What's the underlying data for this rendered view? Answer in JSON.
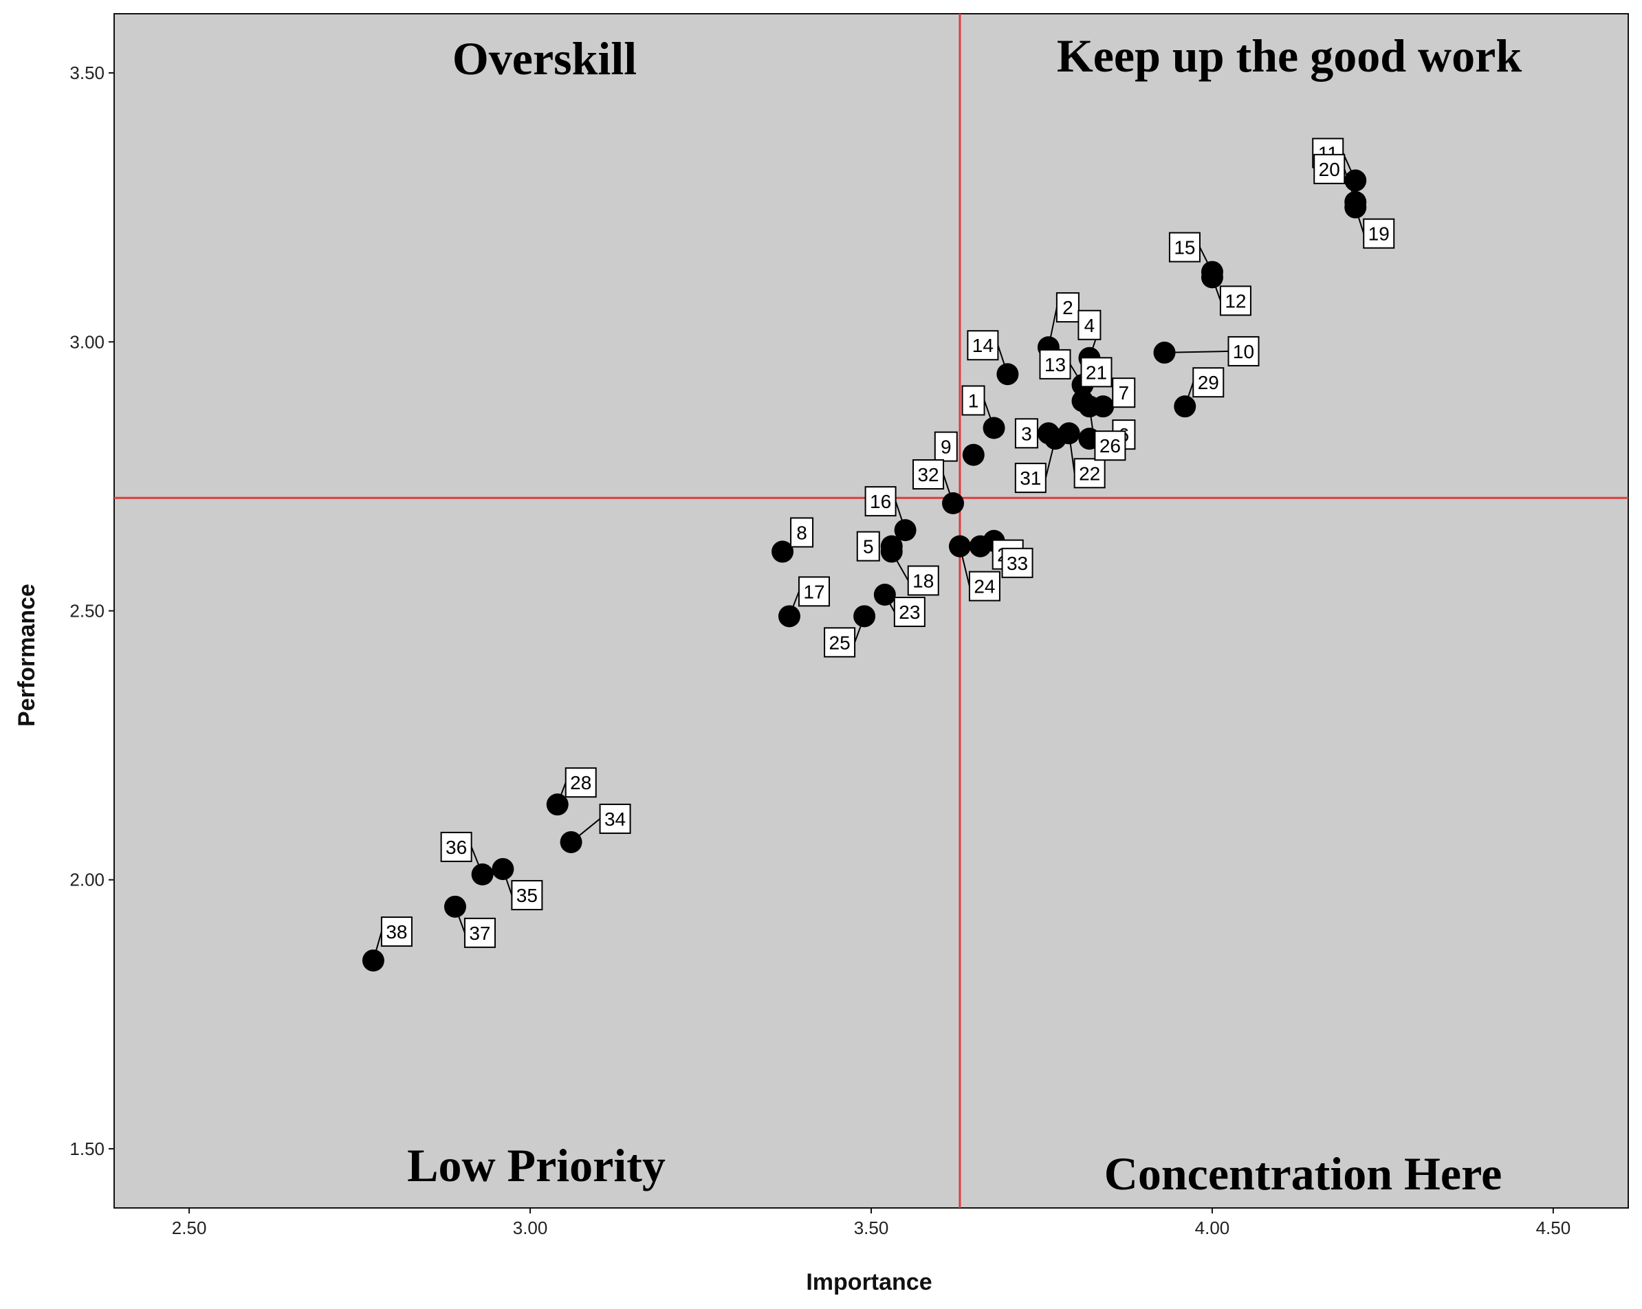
{
  "chart_data": {
    "type": "scatter",
    "title": "",
    "xlabel": "Importance",
    "ylabel": "Performance",
    "xlim": [
      2.39,
      4.61
    ],
    "ylim": [
      1.39,
      3.61
    ],
    "xticks": [
      "2.50",
      "3.00",
      "3.50",
      "4.00",
      "4.50"
    ],
    "xtick_values": [
      2.5,
      3.0,
      3.5,
      4.0,
      4.5
    ],
    "yticks": [
      "1.50",
      "2.00",
      "2.50",
      "3.00",
      "3.50"
    ],
    "ytick_values": [
      1.5,
      2.0,
      2.5,
      3.0,
      3.5
    ],
    "grid": false,
    "reference_lines": {
      "x": 3.63,
      "y": 2.71,
      "color": "#e03c3c"
    },
    "colors": {
      "plot_bg": "#cccccc",
      "marker": "#000000",
      "label_box": "#ffffff"
    },
    "quadrants": {
      "top_left": "Overskill",
      "top_right": "Keep up the good work",
      "bottom_left": "Low Priority",
      "bottom_right": "Concentration Here"
    },
    "points": [
      {
        "id": "1",
        "x": 3.68,
        "y": 2.84
      },
      {
        "id": "2",
        "x": 3.76,
        "y": 2.99
      },
      {
        "id": "3",
        "x": 3.76,
        "y": 2.83
      },
      {
        "id": "4",
        "x": 3.82,
        "y": 2.97
      },
      {
        "id": "5",
        "x": 3.53,
        "y": 2.62
      },
      {
        "id": "6",
        "x": 3.82,
        "y": 2.82
      },
      {
        "id": "7",
        "x": 3.84,
        "y": 2.88
      },
      {
        "id": "8",
        "x": 3.37,
        "y": 2.61
      },
      {
        "id": "9",
        "x": 3.65,
        "y": 2.79
      },
      {
        "id": "10",
        "x": 3.93,
        "y": 2.98
      },
      {
        "id": "11",
        "x": 4.21,
        "y": 3.3
      },
      {
        "id": "12",
        "x": 4.0,
        "y": 3.12
      },
      {
        "id": "13",
        "x": 3.81,
        "y": 2.92
      },
      {
        "id": "14",
        "x": 3.7,
        "y": 2.94
      },
      {
        "id": "15",
        "x": 4.0,
        "y": 3.13
      },
      {
        "id": "16",
        "x": 3.55,
        "y": 2.65
      },
      {
        "id": "17",
        "x": 3.38,
        "y": 2.49
      },
      {
        "id": "18",
        "x": 3.53,
        "y": 2.61
      },
      {
        "id": "19",
        "x": 4.21,
        "y": 3.25
      },
      {
        "id": "20",
        "x": 4.21,
        "y": 3.26
      },
      {
        "id": "21",
        "x": 3.81,
        "y": 2.89
      },
      {
        "id": "22",
        "x": 3.79,
        "y": 2.83
      },
      {
        "id": "23",
        "x": 3.52,
        "y": 2.53
      },
      {
        "id": "24",
        "x": 3.63,
        "y": 2.62
      },
      {
        "id": "25",
        "x": 3.49,
        "y": 2.49
      },
      {
        "id": "26",
        "x": 3.82,
        "y": 2.88
      },
      {
        "id": "27",
        "x": 3.66,
        "y": 2.62
      },
      {
        "id": "28",
        "x": 3.04,
        "y": 2.14
      },
      {
        "id": "29",
        "x": 3.96,
        "y": 2.88
      },
      {
        "id": "31",
        "x": 3.77,
        "y": 2.82
      },
      {
        "id": "32",
        "x": 3.62,
        "y": 2.7
      },
      {
        "id": "33",
        "x": 3.68,
        "y": 2.63
      },
      {
        "id": "34",
        "x": 3.06,
        "y": 2.07
      },
      {
        "id": "35",
        "x": 2.96,
        "y": 2.02
      },
      {
        "id": "36",
        "x": 2.93,
        "y": 2.01
      },
      {
        "id": "37",
        "x": 2.89,
        "y": 1.95
      },
      {
        "id": "38",
        "x": 2.77,
        "y": 1.85
      }
    ]
  }
}
